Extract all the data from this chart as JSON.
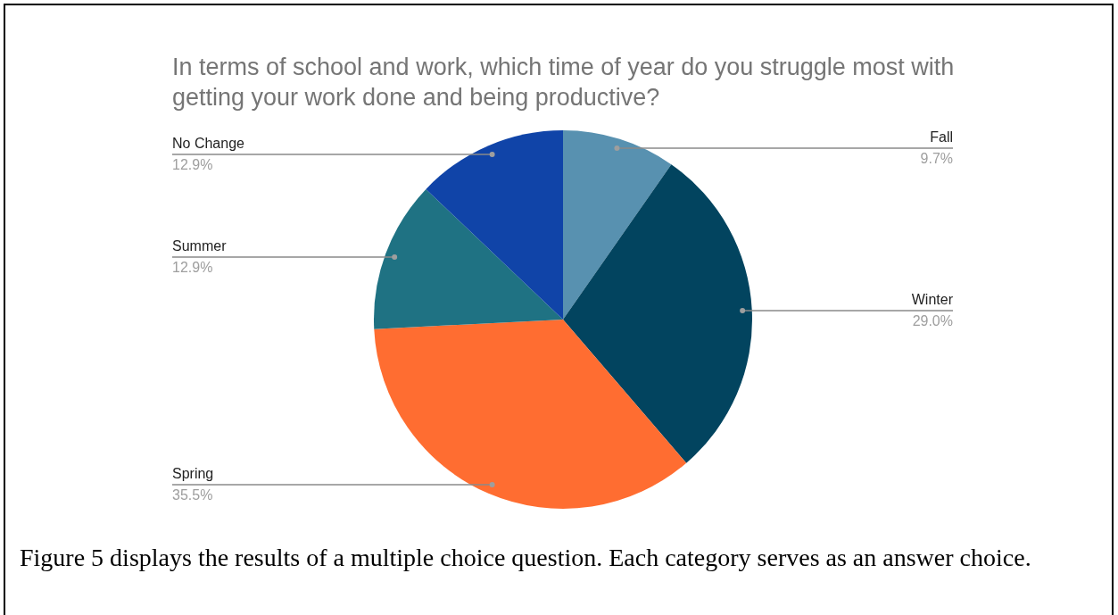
{
  "chart_data": {
    "type": "pie",
    "title": "In terms of school and work, which time of year do you struggle most with getting your work done and being productive?",
    "categories": [
      "Fall",
      "Winter",
      "Spring",
      "Summer",
      "No Change"
    ],
    "values": [
      9.7,
      29.0,
      35.5,
      12.9,
      12.9
    ],
    "value_labels": [
      "9.7%",
      "29.0%",
      "35.5%",
      "12.9%",
      "12.9%"
    ],
    "colors": [
      "#5891b0",
      "#02445f",
      "#ff6d31",
      "#1f7283",
      "#1044a8"
    ],
    "legend": false,
    "annotations": [
      "Figure 5 displays the results of a multiple choice question. Each category serves as an answer choice."
    ]
  }
}
